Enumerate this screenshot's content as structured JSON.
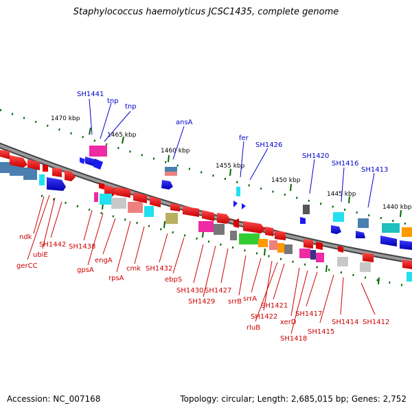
{
  "title": "Staphylococcus haemolyticus JCSC1435, complete genome",
  "accession_text": "Accession: NC_007168",
  "summary_text": "Topology: circular; Length: 2,685,015 bp; Genes: 2,752",
  "kbp_labels": [
    "1470 kbp",
    "1465 kbp",
    "1460 kbp",
    "1455 kbp",
    "1450 kbp",
    "1445 kbp",
    "1440 kbp"
  ],
  "genes_upper": [
    "SH1441",
    "tnp",
    "tnp",
    "ansA",
    "fer",
    "SH1426",
    "SH1420",
    "SH1416",
    "SH1413"
  ],
  "genes_lower": [
    "ndk",
    "SH1442",
    "ubiE",
    "gerCC",
    "SH1438",
    "gpsA",
    "engA",
    "rpsA",
    "cmk",
    "SH1432",
    "ebpS",
    "SH1430",
    "SH1429",
    "SH1427",
    "srrB",
    "srrA",
    "SH1422",
    "rluB",
    "SH1421",
    "xerD",
    "SH1418",
    "SH1417",
    "SH1415",
    "SH1414",
    "SH1412"
  ],
  "colors": {
    "upper_label": "#0000cc",
    "lower_label": "#cc0000",
    "backbone": "#777777",
    "tick": "#006600"
  }
}
